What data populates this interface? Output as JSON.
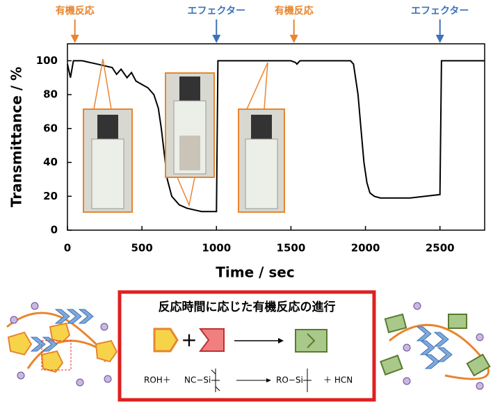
{
  "chart_data": {
    "type": "line",
    "x_label": "Time / sec",
    "y_label": "Transmittance / %",
    "x": [
      0,
      20,
      40,
      100,
      150,
      200,
      250,
      300,
      330,
      360,
      400,
      430,
      460,
      500,
      540,
      580,
      610,
      630,
      650,
      670,
      700,
      750,
      800,
      850,
      900,
      950,
      1000,
      1010,
      1100,
      1200,
      1300,
      1400,
      1500,
      1530,
      1540,
      1560,
      1700,
      1800,
      1900,
      1920,
      1950,
      1970,
      1990,
      2010,
      2030,
      2060,
      2100,
      2200,
      2300,
      2400,
      2500,
      2510,
      2600,
      2700,
      2800
    ],
    "series": [
      {
        "color": "#000000",
        "values": [
          98,
          90,
          100,
          100,
          99,
          98,
          97,
          96,
          92,
          95,
          90,
          93,
          88,
          86,
          84,
          80,
          72,
          60,
          45,
          30,
          20,
          15,
          13,
          12,
          11,
          11,
          11,
          100,
          100,
          100,
          100,
          100,
          100,
          99,
          98,
          100,
          100,
          100,
          100,
          98,
          80,
          60,
          40,
          28,
          22,
          20,
          19,
          19,
          19,
          20,
          21,
          100,
          100,
          100,
          100
        ]
      }
    ],
    "xlim": [
      0,
      2800
    ],
    "xticks": [
      0,
      500,
      1000,
      1500,
      2000,
      2500
    ],
    "ylim": [
      0,
      110
    ],
    "yticks": [
      0,
      20,
      40,
      60,
      80,
      100
    ],
    "annotations": [
      {
        "text": "有機反応",
        "x": 50,
        "color": "#e8852e"
      },
      {
        "text": "エフェクター",
        "x": 1000,
        "color": "#3d72b8"
      },
      {
        "text": "有機反応",
        "x": 1520,
        "color": "#e8852e"
      },
      {
        "text": "エフェクター",
        "x": 2500,
        "color": "#3d72b8"
      }
    ]
  },
  "scheme": {
    "title": "反応時間に応じた有機反応の進行",
    "equation": {
      "reactant1": "ROH＋",
      "reactant2": "NC−Si",
      "product1": "RO−Si",
      "product2": "＋ HCN"
    }
  }
}
